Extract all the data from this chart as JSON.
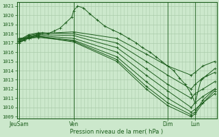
{
  "background_color": "#cce8cc",
  "plot_bg_color": "#cce8cc",
  "grid_color": "#aaccaa",
  "line_color": "#1a5c1a",
  "text_color": "#1a5c1a",
  "spine_color": "#1a5c1a",
  "ylabel_labels": [
    1009,
    1010,
    1011,
    1012,
    1013,
    1014,
    1015,
    1016,
    1017,
    1018,
    1019,
    1020,
    1021
  ],
  "ylim": [
    1008.8,
    1021.4
  ],
  "xlabel": "Pression niveau de la mer( hPa )",
  "xtick_labels": [
    "JeuSam",
    "Ven",
    "Dim",
    "Lun"
  ],
  "xtick_positions": [
    0.0,
    0.28,
    0.76,
    0.9
  ],
  "xlim": [
    -0.01,
    1.01
  ],
  "n_vgrid": 55,
  "series": [
    {
      "x": [
        0.0,
        0.03,
        0.06,
        0.09,
        0.12,
        0.15,
        0.18,
        0.21,
        0.24,
        0.27,
        0.28,
        0.3,
        0.33,
        0.36,
        0.4,
        0.44,
        0.48,
        0.52,
        0.56,
        0.6,
        0.63,
        0.67,
        0.7,
        0.73,
        0.76,
        0.79,
        0.82,
        0.85,
        0.88,
        0.9,
        0.93,
        0.96,
        1.0
      ],
      "y": [
        1017.0,
        1017.3,
        1017.6,
        1017.9,
        1018.1,
        1018.0,
        1018.3,
        1018.6,
        1019.2,
        1019.8,
        1020.5,
        1021.0,
        1020.8,
        1020.2,
        1019.5,
        1018.8,
        1018.4,
        1018.0,
        1017.5,
        1017.0,
        1016.5,
        1016.0,
        1015.5,
        1015.0,
        1014.5,
        1014.0,
        1013.2,
        1012.5,
        1011.5,
        1010.5,
        1013.0,
        1013.5,
        1014.2
      ]
    },
    {
      "x": [
        0.0,
        0.05,
        0.1,
        0.28,
        0.5,
        0.65,
        0.76,
        0.88,
        0.9,
        0.94,
        1.0
      ],
      "y": [
        1017.2,
        1017.8,
        1018.0,
        1018.2,
        1017.5,
        1015.8,
        1014.5,
        1013.5,
        1013.8,
        1014.5,
        1015.0
      ]
    },
    {
      "x": [
        0.0,
        0.05,
        0.1,
        0.28,
        0.5,
        0.65,
        0.76,
        0.88,
        0.9,
        0.94,
        1.0
      ],
      "y": [
        1017.3,
        1017.9,
        1018.1,
        1018.0,
        1017.0,
        1015.0,
        1013.5,
        1012.0,
        1012.5,
        1013.2,
        1013.8
      ]
    },
    {
      "x": [
        0.0,
        0.05,
        0.1,
        0.28,
        0.5,
        0.65,
        0.76,
        0.88,
        0.9,
        0.94,
        1.0
      ],
      "y": [
        1017.1,
        1017.7,
        1017.9,
        1017.8,
        1016.5,
        1014.2,
        1012.5,
        1011.0,
        1011.5,
        1012.0,
        1012.8
      ]
    },
    {
      "x": [
        0.0,
        0.05,
        0.1,
        0.28,
        0.5,
        0.65,
        0.76,
        0.88,
        0.9,
        0.94,
        1.0
      ],
      "y": [
        1017.0,
        1017.6,
        1017.8,
        1017.5,
        1016.0,
        1013.5,
        1011.8,
        1010.0,
        1010.5,
        1011.2,
        1012.0
      ]
    },
    {
      "x": [
        0.0,
        0.05,
        0.1,
        0.28,
        0.5,
        0.65,
        0.76,
        0.88,
        0.9,
        0.94,
        1.0
      ],
      "y": [
        1017.2,
        1017.5,
        1017.7,
        1017.3,
        1015.5,
        1012.8,
        1011.0,
        1009.5,
        1009.8,
        1010.5,
        1011.5
      ]
    },
    {
      "x": [
        0.0,
        0.05,
        0.1,
        0.28,
        0.5,
        0.65,
        0.76,
        0.88,
        0.9,
        0.94,
        1.0
      ],
      "y": [
        1017.4,
        1017.5,
        1017.6,
        1017.2,
        1015.2,
        1012.3,
        1010.5,
        1009.2,
        1009.5,
        1010.8,
        1012.0
      ]
    },
    {
      "x": [
        0.0,
        0.05,
        0.1,
        0.28,
        0.5,
        0.65,
        0.76,
        0.88,
        0.9,
        0.94,
        1.0
      ],
      "y": [
        1017.5,
        1017.6,
        1017.7,
        1017.1,
        1015.0,
        1012.0,
        1010.2,
        1009.0,
        1009.3,
        1010.5,
        1011.8
      ]
    }
  ],
  "figsize": [
    3.2,
    2.0
  ],
  "dpi": 100
}
